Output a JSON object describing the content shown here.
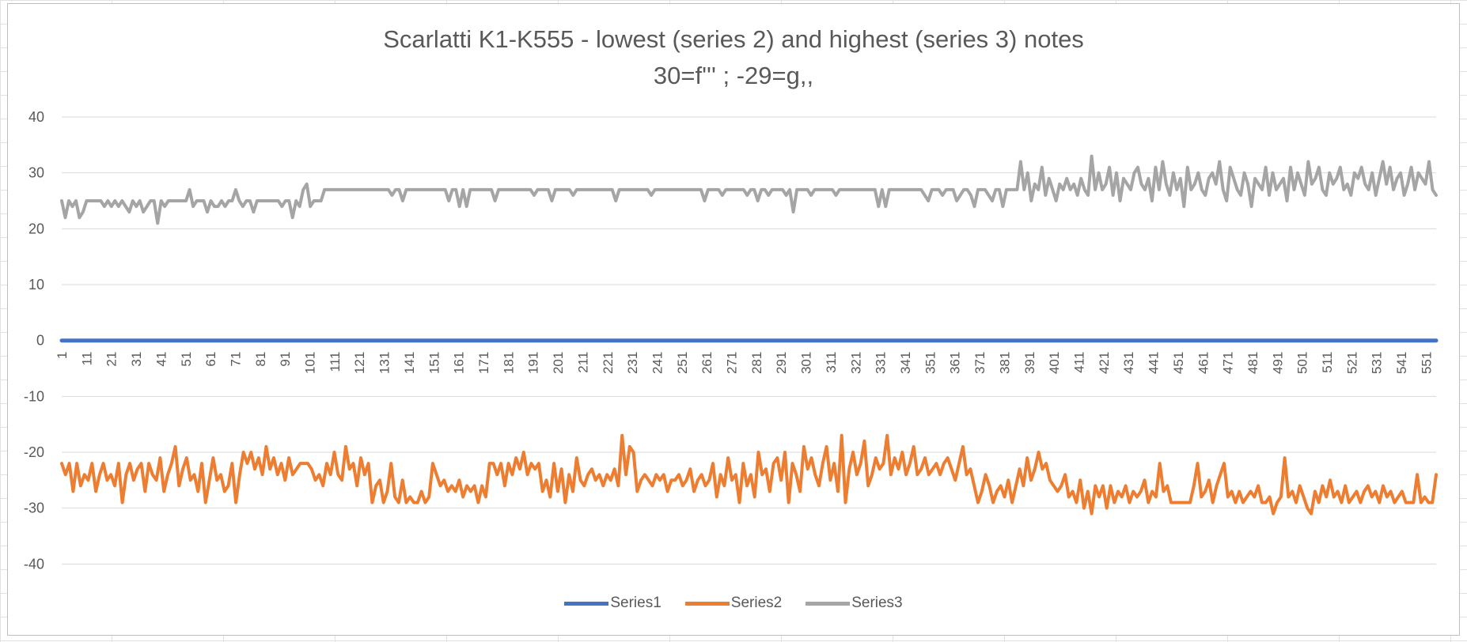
{
  "chart_data": {
    "type": "line",
    "title": "Scarlatti K1-K555 - lowest (series 2) and highest (series 3) notes",
    "subtitle": "30=f''' ; -29=g,,",
    "xlabel": "",
    "ylabel": "",
    "ylim": [
      -50,
      40
    ],
    "y_ticks": [
      40,
      30,
      20,
      10,
      0,
      -10,
      -20,
      -30,
      -40
    ],
    "x_range": [
      1,
      555
    ],
    "x_tick_start": 1,
    "x_tick_step": 10,
    "x_tick_end": 551,
    "grid": true,
    "legend_position": "bottom",
    "series": [
      {
        "name": "Series1",
        "color": "#4472C4",
        "values": [
          0,
          0
        ]
      },
      {
        "name": "Series2",
        "color": "#ED7D31",
        "values": [
          -22,
          -24,
          -22,
          -27,
          -22,
          -26,
          -24,
          -25,
          -22,
          -27,
          -24,
          -22,
          -25,
          -24,
          -26,
          -22,
          -29,
          -24,
          -22,
          -25,
          -23,
          -22,
          -27,
          -22,
          -24,
          -25,
          -21,
          -27,
          -24,
          -22,
          -19,
          -26,
          -23,
          -21,
          -25,
          -24,
          -27,
          -22,
          -29,
          -25,
          -21,
          -25,
          -24,
          -27,
          -26,
          -22,
          -29,
          -24,
          -20,
          -22,
          -20,
          -23,
          -21,
          -24,
          -19,
          -23,
          -21,
          -24,
          -22,
          -25,
          -21,
          -24,
          -23,
          -22,
          -22,
          -22,
          -23,
          -25,
          -24,
          -26,
          -22,
          -24,
          -20,
          -24,
          -25,
          -19,
          -23,
          -22,
          -26,
          -21,
          -24,
          -22,
          -29,
          -26,
          -25,
          -29,
          -27,
          -22,
          -28,
          -29,
          -25,
          -29,
          -28,
          -29,
          -29,
          -27,
          -29,
          -28,
          -22,
          -24,
          -26,
          -25,
          -27,
          -26,
          -27,
          -25,
          -28,
          -26,
          -27,
          -26,
          -29,
          -26,
          -28,
          -22,
          -22,
          -24,
          -22,
          -26,
          -22,
          -24,
          -21,
          -23,
          -20,
          -24,
          -22,
          -23,
          -22,
          -27,
          -25,
          -28,
          -22,
          -27,
          -23,
          -29,
          -24,
          -27,
          -21,
          -25,
          -26,
          -24,
          -23,
          -25,
          -24,
          -26,
          -24,
          -25,
          -23,
          -26,
          -17,
          -24,
          -19,
          -20,
          -27,
          -25,
          -24,
          -25,
          -26,
          -24,
          -25,
          -24,
          -27,
          -25,
          -25,
          -24,
          -26,
          -25,
          -23,
          -27,
          -25,
          -24,
          -26,
          -25,
          -22,
          -28,
          -24,
          -26,
          -21,
          -25,
          -24,
          -29,
          -22,
          -26,
          -24,
          -28,
          -20,
          -24,
          -23,
          -27,
          -22,
          -21,
          -25,
          -20,
          -29,
          -22,
          -24,
          -27,
          -19,
          -23,
          -21,
          -24,
          -26,
          -22,
          -19,
          -25,
          -22,
          -27,
          -17,
          -29,
          -23,
          -20,
          -24,
          -22,
          -18,
          -26,
          -24,
          -21,
          -23,
          -22,
          -17,
          -24,
          -21,
          -23,
          -20,
          -24,
          -22,
          -19,
          -24,
          -23,
          -21,
          -24,
          -23,
          -22,
          -24,
          -22,
          -21,
          -23,
          -25,
          -22,
          -19,
          -24,
          -23,
          -26,
          -29,
          -27,
          -24,
          -26,
          -29,
          -27,
          -26,
          -28,
          -25,
          -29,
          -26,
          -23,
          -26,
          -21,
          -25,
          -23,
          -20,
          -23,
          -22,
          -25,
          -26,
          -27,
          -26,
          -24,
          -28,
          -27,
          -29,
          -25,
          -30,
          -27,
          -31,
          -26,
          -28,
          -26,
          -30,
          -26,
          -29,
          -27,
          -28,
          -26,
          -29,
          -27,
          -28,
          -27,
          -25,
          -29,
          -27,
          -28,
          -22,
          -27,
          -26,
          -29,
          -29,
          -29,
          -29,
          -29,
          -29,
          -26,
          -22,
          -28,
          -27,
          -25,
          -29,
          -26,
          -24,
          -22,
          -28,
          -27,
          -29,
          -27,
          -29,
          -28,
          -27,
          -28,
          -26,
          -29,
          -29,
          -28,
          -31,
          -29,
          -28,
          -21,
          -28,
          -27,
          -29,
          -26,
          -28,
          -30,
          -31,
          -27,
          -29,
          -26,
          -28,
          -25,
          -28,
          -27,
          -29,
          -26,
          -29,
          -28,
          -27,
          -29,
          -27,
          -26,
          -28,
          -27,
          -29,
          -26,
          -28,
          -27,
          -29,
          -28,
          -27,
          -29,
          -29,
          -29,
          -24,
          -29,
          -28,
          -29,
          -29,
          -24
        ]
      },
      {
        "name": "Series3",
        "color": "#A5A5A5",
        "values": [
          25,
          22,
          25,
          24,
          25,
          22,
          23,
          25,
          25,
          25,
          25,
          25,
          24,
          25,
          24,
          25,
          24,
          25,
          24,
          23,
          25,
          24,
          25,
          23,
          24,
          25,
          25,
          21,
          25,
          24,
          25,
          25,
          25,
          25,
          25,
          25,
          27,
          24,
          25,
          25,
          25,
          23,
          25,
          24,
          24,
          25,
          24,
          25,
          25,
          27,
          25,
          24,
          25,
          25,
          23,
          25,
          25,
          25,
          25,
          25,
          25,
          25,
          24,
          25,
          25,
          22,
          25,
          24,
          27,
          28,
          24,
          25,
          25,
          25,
          27,
          27,
          27,
          27,
          27,
          27,
          27,
          27,
          27,
          27,
          27,
          27,
          27,
          27,
          27,
          27,
          27,
          27,
          27,
          26,
          27,
          27,
          25,
          27,
          27,
          27,
          27,
          27,
          27,
          27,
          27,
          27,
          27,
          27,
          27,
          25,
          27,
          27,
          24,
          27,
          24,
          27,
          27,
          27,
          27,
          27,
          27,
          27,
          25,
          27,
          27,
          27,
          27,
          27,
          27,
          27,
          27,
          27,
          27,
          26,
          27,
          27,
          27,
          27,
          25,
          27,
          27,
          27,
          27,
          27,
          26,
          27,
          27,
          27,
          27,
          27,
          27,
          27,
          27,
          27,
          27,
          27,
          25,
          27,
          27,
          27,
          27,
          27,
          27,
          27,
          27,
          27,
          26,
          27,
          27,
          27,
          27,
          27,
          27,
          27,
          27,
          27,
          27,
          27,
          27,
          27,
          27,
          25,
          27,
          27,
          27,
          27,
          26,
          27,
          27,
          27,
          27,
          27,
          27,
          26,
          27,
          27,
          25,
          27,
          27,
          26,
          27,
          27,
          27,
          27,
          26,
          27,
          23,
          27,
          27,
          27,
          27,
          26,
          27,
          27,
          27,
          27,
          27,
          27,
          26,
          27,
          27,
          27,
          27,
          27,
          27,
          27,
          27,
          27,
          27,
          27,
          24,
          27,
          24,
          27,
          27,
          27,
          27,
          27,
          27,
          27,
          27,
          27,
          27,
          26,
          25,
          27,
          27,
          27,
          26,
          27,
          27,
          27,
          25,
          26,
          27,
          27,
          26,
          24,
          27,
          27,
          27,
          26,
          25,
          27,
          27,
          24,
          27,
          27,
          27,
          27,
          32,
          27,
          30,
          25,
          28,
          27,
          31,
          26,
          29,
          27,
          25,
          28,
          27,
          29,
          27,
          28,
          26,
          29,
          27,
          26,
          33,
          27,
          30,
          27,
          28,
          31,
          26,
          30,
          25,
          29,
          28,
          27,
          30,
          31,
          28,
          27,
          29,
          25,
          31,
          27,
          32,
          28,
          26,
          30,
          27,
          29,
          24,
          31,
          27,
          28,
          30,
          27,
          26,
          29,
          30,
          28,
          32,
          27,
          25,
          31,
          29,
          27,
          26,
          30,
          28,
          24,
          29,
          28,
          27,
          31,
          26,
          30,
          27,
          28,
          29,
          25,
          31,
          27,
          30,
          28,
          26,
          32,
          28,
          29,
          31,
          27,
          26,
          30,
          28,
          29,
          31,
          27,
          28,
          26,
          30,
          29,
          31,
          28,
          27,
          30,
          26,
          29,
          32,
          28,
          31,
          27,
          29,
          30,
          26,
          28,
          31,
          27,
          30,
          29,
          28,
          32,
          27,
          26
        ]
      }
    ]
  }
}
